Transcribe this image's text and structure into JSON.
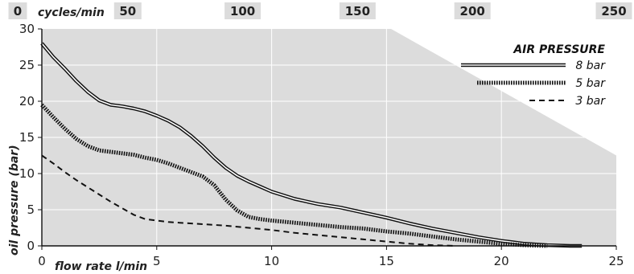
{
  "chart_data": {
    "type": "line",
    "title": "",
    "xlabel": "flow rate l/min",
    "ylabel": "oil pressure (bar)",
    "secondary_xlabel": "cycles/min",
    "xlim": [
      0,
      25
    ],
    "ylim": [
      0,
      30
    ],
    "x_ticks": [
      0,
      5,
      10,
      15,
      20,
      25
    ],
    "y_ticks": [
      0,
      5,
      10,
      15,
      20,
      25,
      30
    ],
    "secondary_x_ticks": [
      {
        "label": "0",
        "x": 0
      },
      {
        "label": "50",
        "x": 5
      },
      {
        "label": "100",
        "x": 10
      },
      {
        "label": "150",
        "x": 15
      },
      {
        "label": "200",
        "x": 20
      },
      {
        "label": "250",
        "x": 25
      }
    ],
    "grid": true,
    "legend_title": "AIR PRESSURE",
    "legend_position": "top-right",
    "series": [
      {
        "name": "8 bar",
        "style": "double",
        "x": [
          0,
          0.5,
          1,
          1.5,
          2,
          2.5,
          3,
          3.5,
          4,
          4.5,
          5,
          5.5,
          6,
          6.5,
          7,
          7.5,
          8,
          8.5,
          9,
          9.5,
          10,
          11,
          12,
          13,
          14,
          15,
          16,
          17,
          18,
          19,
          20,
          21,
          22,
          23,
          23.5
        ],
        "values": [
          28,
          26.1,
          24.5,
          22.8,
          21.3,
          20.1,
          19.5,
          19.3,
          19.0,
          18.6,
          18.0,
          17.3,
          16.4,
          15.2,
          13.8,
          12.2,
          10.8,
          9.7,
          8.9,
          8.2,
          7.5,
          6.5,
          5.8,
          5.3,
          4.6,
          3.9,
          3.1,
          2.4,
          1.8,
          1.2,
          0.7,
          0.3,
          0.1,
          0,
          0
        ]
      },
      {
        "name": "5 bar",
        "style": "hatched",
        "x": [
          0,
          0.5,
          1,
          1.5,
          2,
          2.5,
          3,
          3.5,
          4,
          4.5,
          5,
          5.5,
          6,
          6.5,
          7,
          7.5,
          8,
          8.5,
          9,
          9.5,
          10,
          11,
          12,
          13,
          14,
          15,
          16,
          17,
          18,
          19,
          20,
          21,
          22
        ],
        "values": [
          19.5,
          17.8,
          16.2,
          14.8,
          13.8,
          13.2,
          13.0,
          12.8,
          12.6,
          12.2,
          11.9,
          11.4,
          10.8,
          10.2,
          9.6,
          8.4,
          6.4,
          4.9,
          4.0,
          3.7,
          3.5,
          3.2,
          2.9,
          2.6,
          2.4,
          2.0,
          1.7,
          1.3,
          0.9,
          0.6,
          0.3,
          0.1,
          0
        ]
      },
      {
        "name": "3 bar",
        "style": "dashed",
        "x": [
          0,
          0.5,
          1,
          1.5,
          2,
          2.5,
          3,
          3.5,
          4,
          4.5,
          5,
          5.5,
          6,
          7,
          8,
          9,
          10,
          11,
          12,
          13,
          14,
          15,
          16,
          17,
          18
        ],
        "values": [
          12.5,
          11.4,
          10.2,
          9.1,
          8.1,
          7.1,
          6.1,
          5.2,
          4.3,
          3.7,
          3.5,
          3.3,
          3.2,
          3.0,
          2.8,
          2.5,
          2.2,
          1.8,
          1.5,
          1.2,
          0.9,
          0.6,
          0.3,
          0.1,
          0
        ]
      }
    ],
    "shaded_region": {
      "x_start": 15.2,
      "x_end": 25,
      "upper_y_at_start": 30,
      "upper_y_at_end": 12.5
    }
  }
}
